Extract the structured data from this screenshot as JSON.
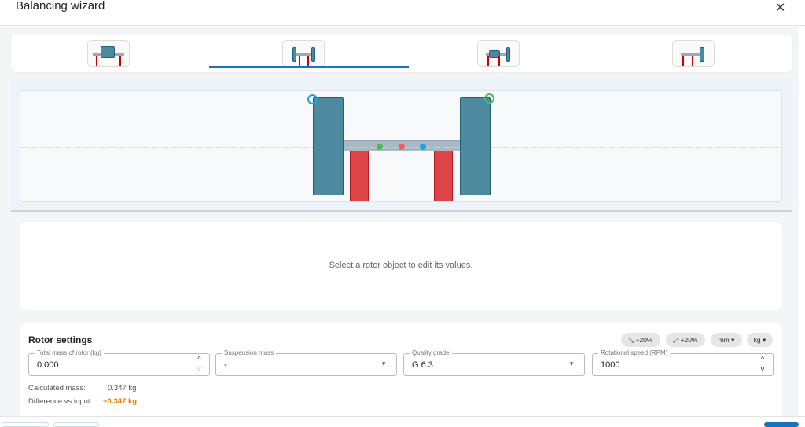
{
  "dialog": {
    "title": "Balancing wizard",
    "close_icon": "close-icon"
  },
  "tabs": [
    {
      "name": "single-disc-center"
    },
    {
      "name": "double-disc-outside",
      "active": true
    },
    {
      "name": "overhung-two-disc"
    },
    {
      "name": "overhung-single-disc"
    }
  ],
  "canvas": {
    "colors": {
      "disc": "#4d8aa0",
      "support": "#dc4447",
      "shaft": "#a9b9c2",
      "plane_left": "#1ea0e6",
      "plane_right": "#4cb85a",
      "center_of_mass": "#f06060"
    }
  },
  "info": {
    "message": "Select a rotor object to edit its values."
  },
  "rotor_settings": {
    "title": "Rotor settings",
    "scale_down": "−20%",
    "scale_up": "+20%",
    "length_unit": "mm",
    "mass_unit": "kg",
    "fields": {
      "total_mass": {
        "label": "Total mass of rotor (kg)",
        "value": "0.000"
      },
      "suspension_mass": {
        "label": "Suspension mass",
        "value": "-"
      },
      "quality_grade": {
        "label": "Quality grade",
        "value": "G 6.3"
      },
      "rotational_speed": {
        "label": "Rotational speed (RPM)",
        "value": "1000"
      }
    },
    "calculated_mass_label": "Calculated mass:",
    "calculated_mass_value": "0.347 kg",
    "difference_label": "Difference vs input:",
    "difference_value": "+0.347 kg",
    "difference_color": "#e67e00"
  }
}
